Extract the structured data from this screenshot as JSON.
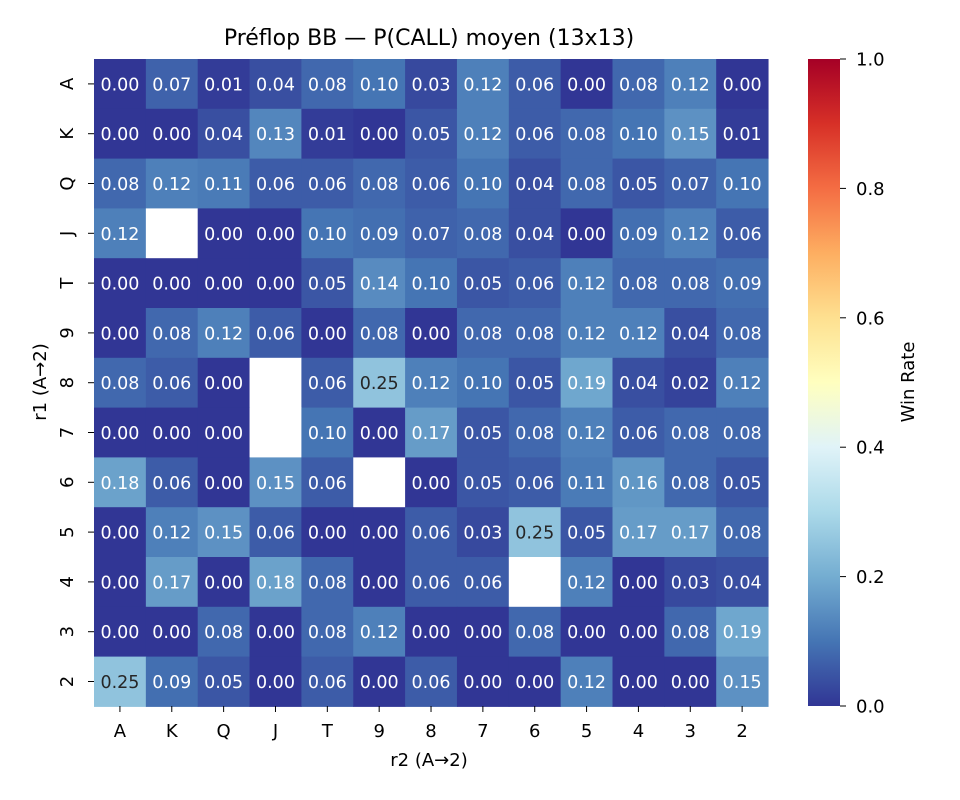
{
  "chart_data": {
    "type": "heatmap",
    "title": "Préflop BB — P(CALL) moyen (13x13)",
    "xlabel": "r2 (A→2)",
    "ylabel": "r1 (A→2)",
    "x_categories": [
      "A",
      "K",
      "Q",
      "J",
      "T",
      "9",
      "8",
      "7",
      "6",
      "5",
      "4",
      "3",
      "2"
    ],
    "y_categories": [
      "A",
      "K",
      "Q",
      "J",
      "T",
      "9",
      "8",
      "7",
      "6",
      "5",
      "4",
      "3",
      "2"
    ],
    "values": [
      [
        0.0,
        0.07,
        0.01,
        0.04,
        0.08,
        0.1,
        0.03,
        0.12,
        0.06,
        0.0,
        0.08,
        0.12,
        0.0
      ],
      [
        0.0,
        0.0,
        0.04,
        0.13,
        0.01,
        0.0,
        0.05,
        0.12,
        0.06,
        0.08,
        0.1,
        0.15,
        0.01
      ],
      [
        0.08,
        0.12,
        0.11,
        0.06,
        0.06,
        0.08,
        0.06,
        0.1,
        0.04,
        0.08,
        0.05,
        0.07,
        0.1
      ],
      [
        0.12,
        null,
        0.0,
        0.0,
        0.1,
        0.09,
        0.07,
        0.08,
        0.04,
        0.0,
        0.09,
        0.12,
        0.06
      ],
      [
        0.0,
        0.0,
        0.0,
        0.0,
        0.05,
        0.14,
        0.1,
        0.05,
        0.06,
        0.12,
        0.08,
        0.08,
        0.09
      ],
      [
        0.0,
        0.08,
        0.12,
        0.06,
        0.0,
        0.08,
        0.0,
        0.08,
        0.08,
        0.12,
        0.12,
        0.04,
        0.08
      ],
      [
        0.08,
        0.06,
        0.0,
        null,
        0.06,
        0.25,
        0.12,
        0.1,
        0.05,
        0.19,
        0.04,
        0.02,
        0.12
      ],
      [
        0.0,
        0.0,
        0.0,
        null,
        0.1,
        0.0,
        0.17,
        0.05,
        0.08,
        0.12,
        0.06,
        0.08,
        0.08
      ],
      [
        0.18,
        0.06,
        0.0,
        0.15,
        0.06,
        null,
        0.0,
        0.05,
        0.06,
        0.11,
        0.16,
        0.08,
        0.05
      ],
      [
        0.0,
        0.12,
        0.15,
        0.06,
        0.0,
        0.0,
        0.06,
        0.03,
        0.25,
        0.05,
        0.17,
        0.17,
        0.08
      ],
      [
        0.0,
        0.17,
        0.0,
        0.18,
        0.08,
        0.0,
        0.06,
        0.06,
        null,
        0.12,
        0.0,
        0.03,
        0.04
      ],
      [
        0.0,
        0.0,
        0.08,
        0.0,
        0.08,
        0.12,
        0.0,
        0.0,
        0.08,
        0.0,
        0.0,
        0.08,
        0.19
      ],
      [
        0.25,
        0.09,
        0.05,
        0.0,
        0.06,
        0.0,
        0.06,
        0.0,
        0.0,
        0.12,
        0.0,
        0.0,
        0.15
      ]
    ],
    "colorbar": {
      "label": "Win Rate",
      "range": [
        0.0,
        1.0
      ],
      "ticks": [
        "0.0",
        "0.2",
        "0.4",
        "0.6",
        "0.8",
        "1.0"
      ],
      "colormap": "RdYlBu_r"
    }
  }
}
